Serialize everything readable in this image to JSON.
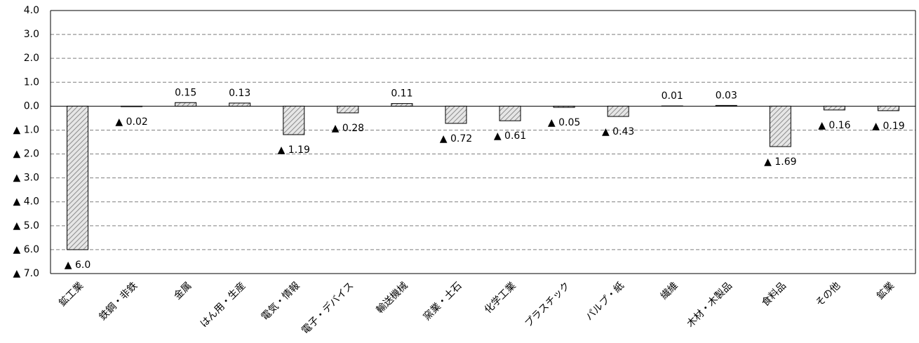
{
  "chart_data": {
    "type": "bar",
    "categories": [
      "鉱工業",
      "鉄鋼・非鉄",
      "金属",
      "はん用・生産",
      "電気・情報",
      "電子・デバイス",
      "輸送機械",
      "窯業・土石",
      "化学工業",
      "プラスチック",
      "パルプ・紙",
      "繊維",
      "木材・木製品",
      "食料品",
      "その他",
      "鉱業"
    ],
    "values": [
      -6.0,
      -0.02,
      0.15,
      0.13,
      -1.19,
      -0.28,
      0.11,
      -0.72,
      -0.61,
      -0.05,
      -0.43,
      0.01,
      0.03,
      -1.69,
      -0.16,
      -0.19
    ],
    "value_labels": [
      "▲ 6.0",
      "▲ 0.02",
      "0.15",
      "0.13",
      "▲ 1.19",
      "▲ 0.28",
      "0.11",
      "▲ 0.72",
      "▲ 0.61",
      "▲ 0.05",
      "▲ 0.43",
      "0.01",
      "0.03",
      "▲ 1.69",
      "▲ 0.16",
      "▲ 0.19"
    ],
    "color": "#d9d9d9",
    "ylim": [
      -7,
      4
    ],
    "yticks": [
      {
        "value": 4,
        "label": "4.0"
      },
      {
        "value": 3,
        "label": "3.0"
      },
      {
        "value": 2,
        "label": "2.0"
      },
      {
        "value": 1,
        "label": "1.0"
      },
      {
        "value": 0,
        "label": "0.0"
      },
      {
        "value": -1,
        "label": "▲ 1.0"
      },
      {
        "value": -2,
        "label": "▲ 2.0"
      },
      {
        "value": -3,
        "label": "▲ 3.0"
      },
      {
        "value": -4,
        "label": "▲ 4.0"
      },
      {
        "value": -5,
        "label": "▲ 5.0"
      },
      {
        "value": -6,
        "label": "▲ 6.0"
      },
      {
        "value": -7,
        "label": "▲ 7.0"
      }
    ],
    "grid": true
  }
}
